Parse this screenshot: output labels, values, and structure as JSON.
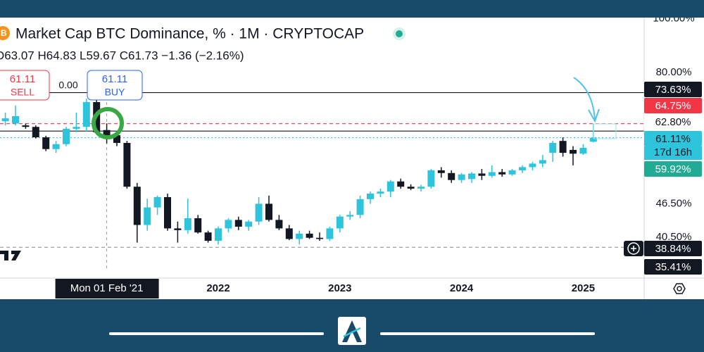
{
  "chart_data": {
    "type": "candlestick",
    "title": "Market Cap BTC Dominance, % · 1M · CRYPTOCAP",
    "ohlc_header": "O63.07 H64.83 L59.67 C61.73 −1.36 (−2.16%)",
    "sell": {
      "price": "61.11",
      "label": "SELL"
    },
    "spread": "0.00",
    "buy": {
      "price": "61.11",
      "label": "BUY"
    },
    "up_color": "#2ec4dc",
    "down_color": "#131722",
    "log_scale": true,
    "ylim": [
      34.2,
      100.4
    ],
    "yticks": [
      {
        "value": 100,
        "label": "100.00%"
      },
      {
        "value": 80,
        "label": "80.00%"
      },
      {
        "value": 46.5,
        "label": "46.50%"
      },
      {
        "value": 40.5,
        "label": "40.50%"
      }
    ],
    "xticks": [
      {
        "value": "2022-01",
        "label": "2022"
      },
      {
        "value": "2023-01",
        "label": "2023"
      },
      {
        "value": "2024-01",
        "label": "2024"
      },
      {
        "value": "2025-01",
        "label": "2025"
      }
    ],
    "crosshair": {
      "x": "2021-02",
      "label": "Mon 01 Feb '21"
    },
    "countdown": "17d 16h",
    "price_labels": [
      {
        "value": 73.63,
        "label": "73.63%",
        "color": "#131722",
        "line": "solid"
      },
      {
        "value": 64.75,
        "label": "64.75%",
        "color": "#f23645",
        "line": "dashed"
      },
      {
        "value": 62.8,
        "label": "62.80%",
        "color": "#ffffff",
        "line": "solid"
      },
      {
        "value": 61.11,
        "label": "61.11%",
        "color": "#2ec4dc",
        "line": "dotted"
      },
      {
        "value": 59.92,
        "label": "59.92%",
        "color": "#22ab94"
      },
      {
        "value": 38.84,
        "label": "38.84%",
        "color": "#131722",
        "line": "dashed"
      },
      {
        "value": 35.41,
        "label": "35.41%",
        "color": "#131722"
      }
    ],
    "x": [
      "2020-04",
      "2020-05",
      "2020-06",
      "2020-07",
      "2020-08",
      "2020-09",
      "2020-10",
      "2020-11",
      "2020-12",
      "2021-01",
      "2021-02",
      "2021-03",
      "2021-04",
      "2021-05",
      "2021-06",
      "2021-07",
      "2021-08",
      "2021-09",
      "2021-10",
      "2021-11",
      "2021-12",
      "2022-01",
      "2022-02",
      "2022-03",
      "2022-04",
      "2022-05",
      "2022-06",
      "2022-07",
      "2022-08",
      "2022-09",
      "2022-10",
      "2022-11",
      "2022-12",
      "2023-01",
      "2023-02",
      "2023-03",
      "2023-04",
      "2023-05",
      "2023-06",
      "2023-07",
      "2023-08",
      "2023-09",
      "2023-10",
      "2023-11",
      "2023-12",
      "2024-01",
      "2024-02",
      "2024-03",
      "2024-04",
      "2024-05",
      "2024-06",
      "2024-07",
      "2024-08",
      "2024-09",
      "2024-10",
      "2024-11",
      "2024-12",
      "2025-01",
      "2025-02"
    ],
    "open": [
      65.4,
      64.8,
      64.3,
      63.9,
      61.2,
      58.3,
      59.5,
      63.4,
      63.9,
      70.8,
      63.07,
      61.73,
      59.8,
      49.9,
      42.6,
      45.8,
      47.8,
      42.0,
      41.7,
      43.8,
      41.3,
      39.9,
      42.0,
      43.5,
      42.3,
      43.2,
      46.5,
      43.5,
      42.0,
      40.2,
      41.1,
      40.4,
      40.2,
      42.0,
      44.1,
      44.4,
      47.4,
      48.5,
      48.9,
      51.0,
      49.9,
      49.5,
      49.9,
      53.4,
      52.8,
      51.3,
      51.5,
      52.7,
      52.2,
      53.0,
      52.5,
      53.4,
      54.1,
      54.9,
      57.4,
      60.3,
      58.1,
      57.2,
      60.1
    ],
    "high": [
      67.8,
      69.8,
      64.8,
      64.3,
      61.6,
      60.3,
      63.9,
      67.8,
      71.8,
      72.5,
      64.83,
      62.5,
      60.3,
      50.7,
      47.5,
      48.1,
      48.5,
      43.2,
      47.5,
      44.4,
      41.6,
      42.3,
      43.8,
      44.1,
      43.5,
      47.8,
      48.1,
      44.4,
      42.6,
      41.6,
      41.6,
      41.3,
      42.3,
      44.4,
      45.1,
      48.1,
      48.9,
      49.5,
      51.3,
      51.6,
      50.4,
      50.3,
      53.7,
      54.1,
      53.4,
      52.8,
      53.0,
      53.7,
      54.5,
      53.7,
      53.7,
      54.5,
      55.3,
      56.9,
      60.3,
      61.2,
      59.0,
      59.5,
      64.75
    ],
    "low": [
      64.3,
      64.3,
      63.4,
      60.9,
      57.8,
      57.4,
      59.0,
      62.5,
      62.7,
      62.1,
      59.67,
      59.0,
      49.5,
      39.6,
      41.6,
      44.4,
      41.6,
      39.6,
      41.1,
      41.1,
      39.6,
      39.3,
      41.3,
      41.7,
      41.6,
      42.6,
      43.2,
      41.7,
      40.0,
      39.3,
      40.2,
      39.9,
      39.9,
      41.3,
      43.5,
      43.8,
      46.5,
      47.8,
      47.8,
      49.5,
      49.2,
      48.9,
      49.5,
      51.8,
      50.7,
      50.7,
      50.7,
      51.3,
      51.8,
      52.0,
      52.2,
      52.8,
      53.4,
      54.1,
      55.3,
      56.5,
      54.5,
      56.9,
      59.92
    ],
    "close": [
      66.2,
      66.8,
      63.9,
      61.2,
      58.3,
      59.5,
      63.4,
      63.9,
      70.8,
      62.5,
      61.73,
      59.8,
      49.9,
      42.6,
      45.8,
      47.8,
      42.0,
      41.7,
      43.8,
      41.3,
      39.9,
      42.0,
      43.5,
      42.3,
      43.2,
      46.5,
      43.5,
      42.0,
      40.2,
      41.1,
      40.4,
      40.2,
      42.0,
      44.1,
      44.4,
      47.4,
      48.5,
      48.9,
      51.0,
      49.9,
      49.5,
      49.9,
      53.4,
      52.8,
      51.3,
      52.5,
      52.7,
      52.2,
      53.0,
      52.5,
      53.4,
      54.1,
      54.9,
      55.7,
      59.8,
      57.4,
      57.2,
      58.6,
      61.11
    ]
  }
}
